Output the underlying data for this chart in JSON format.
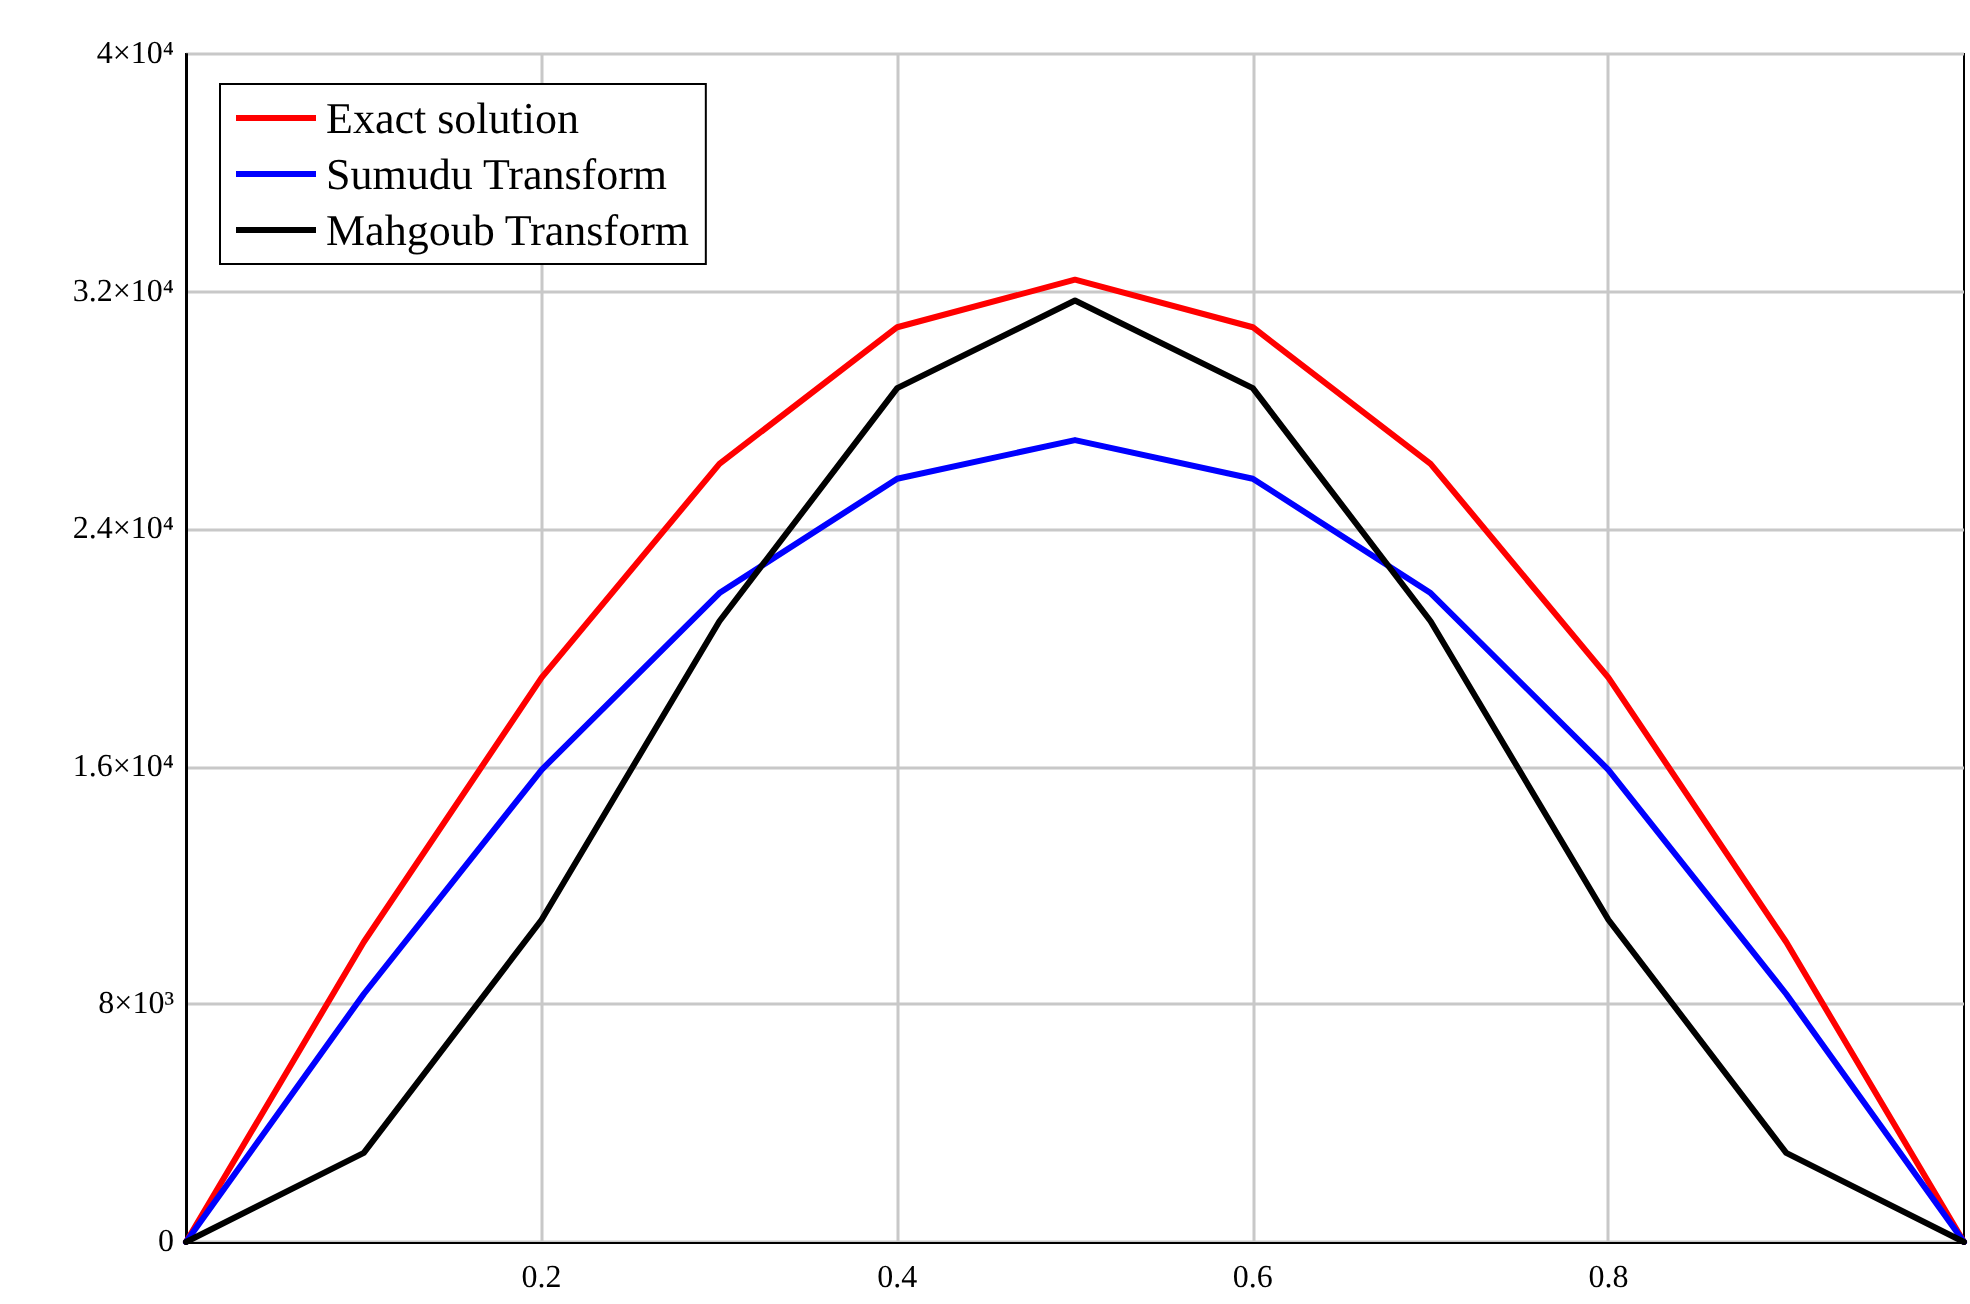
{
  "chart_data": {
    "type": "line",
    "x": [
      0,
      0.1,
      0.2,
      0.3,
      0.4,
      0.5,
      0.6,
      0.7,
      0.8,
      0.9,
      1
    ],
    "series": [
      {
        "name": "Exact solution",
        "color": "#ff0000",
        "values": [
          0,
          10100,
          19000,
          26200,
          30800,
          32400,
          30800,
          26200,
          19000,
          10100,
          0
        ]
      },
      {
        "name": "Sumudu Transform",
        "color": "#0000ff",
        "values": [
          0,
          8350,
          15900,
          21850,
          25700,
          27000,
          25700,
          21850,
          15900,
          8350,
          0
        ]
      },
      {
        "name": "Mahgoub Transform",
        "color": "#000000",
        "values": [
          0,
          3000,
          10850,
          20900,
          28750,
          31700,
          28750,
          20900,
          10850,
          3000,
          0
        ]
      }
    ],
    "xlim": [
      0,
      1
    ],
    "xticks": [
      0.2,
      0.4,
      0.6,
      0.8
    ],
    "ylim": [
      0,
      40000
    ],
    "yticks": [
      {
        "value": 0,
        "label": "0"
      },
      {
        "value": 8000,
        "label": "8×10³"
      },
      {
        "value": 16000,
        "label": "1.6×10⁴"
      },
      {
        "value": 24000,
        "label": "2.4×10⁴"
      },
      {
        "value": 32000,
        "label": "3.2×10⁴"
      },
      {
        "value": 40000,
        "label": "4×10⁴"
      }
    ],
    "grid": true,
    "legend": "top left",
    "marker": "none",
    "line_style": "solid"
  }
}
